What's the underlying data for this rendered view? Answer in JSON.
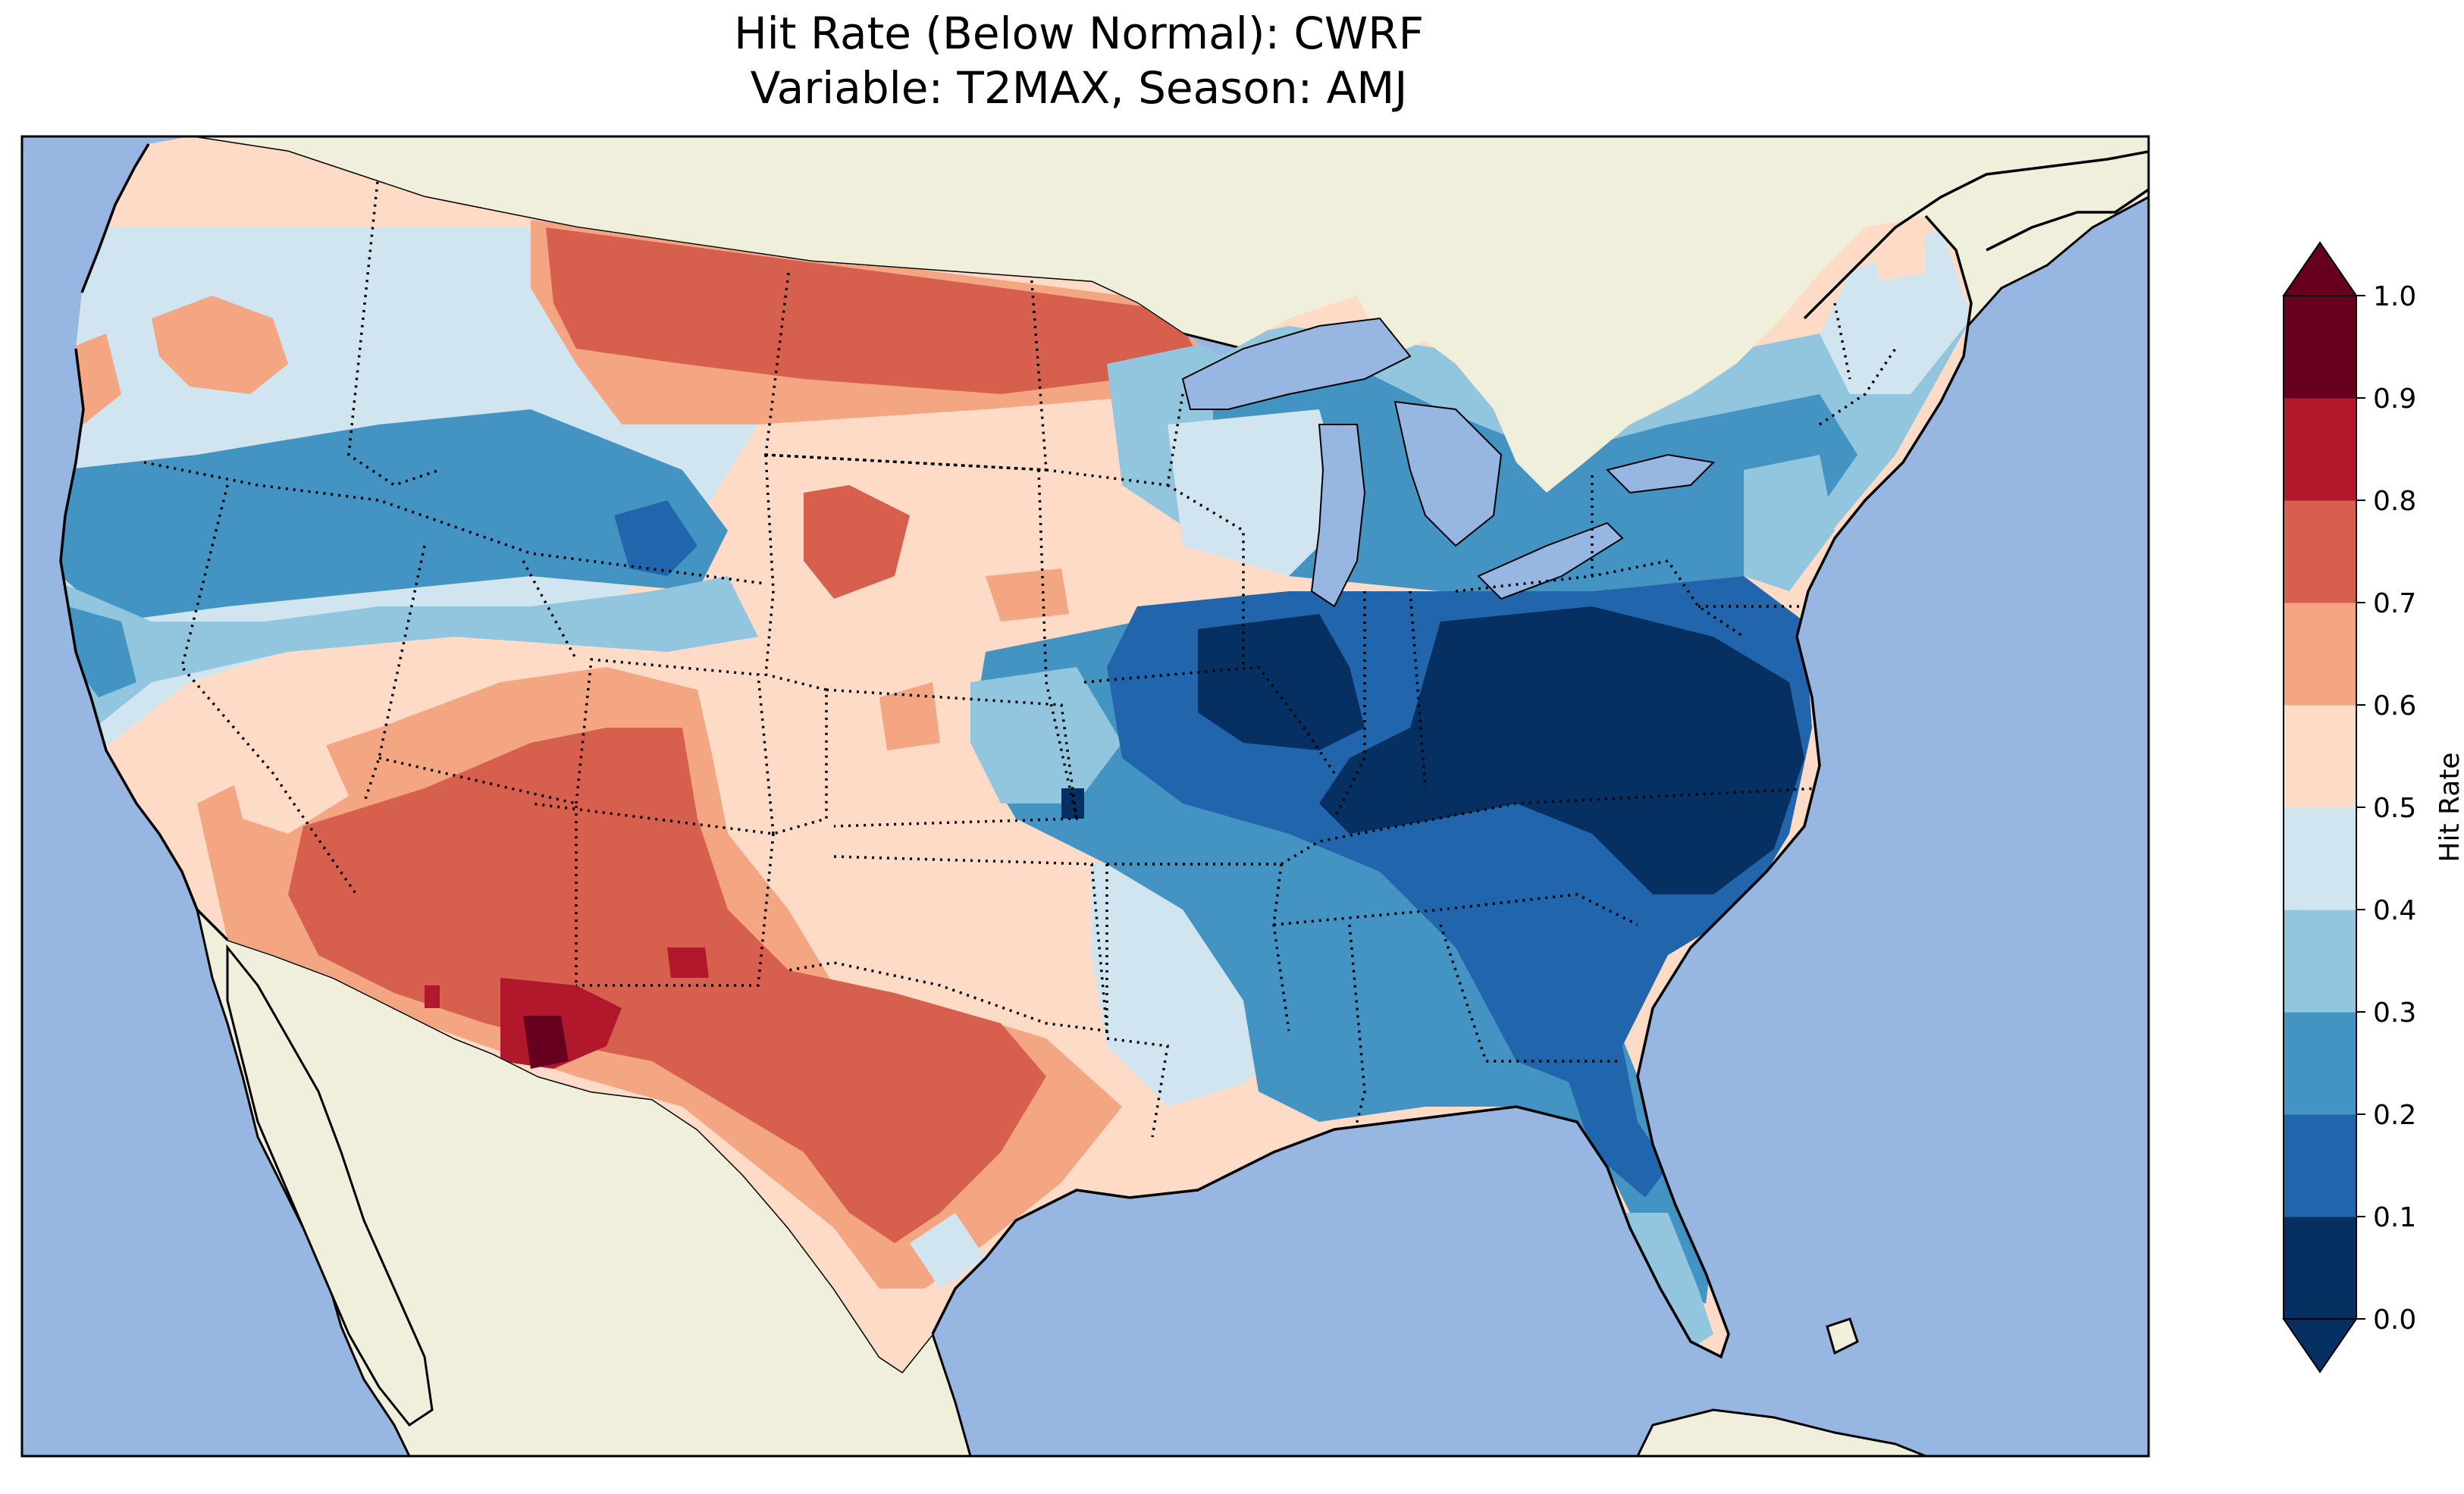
{
  "title": {
    "line1": "Hit Rate (Below Normal): CWRF",
    "line2": "Variable: T2MAX, Season: AMJ"
  },
  "map": {
    "region": "Contiguous United States",
    "ocean_color": "#97b6e1",
    "land_color": "#efefdb",
    "border_style": "dotted state boundaries, solid coastlines",
    "field_pattern": [
      {
        "region": "Upper Midwest / Northern Plains",
        "level": "0.7-0.8"
      },
      {
        "region": "Southwest / Texas",
        "level": "0.7-0.8"
      },
      {
        "region": "SE Arizona / SW New Mexico",
        "level": "0.9-1.0"
      },
      {
        "region": "Ohio Valley / Virginia / Carolinas",
        "level": "0.0-0.1"
      },
      {
        "region": "Southeast / Gulf Coast",
        "level": "0.1-0.3"
      },
      {
        "region": "Great Basin / Northern Rockies",
        "level": "0.2-0.3"
      },
      {
        "region": "Central Plains",
        "level": "0.5-0.6"
      }
    ]
  },
  "colorbar": {
    "label": "Hit Rate",
    "ticks": [
      "0.0",
      "0.1",
      "0.2",
      "0.3",
      "0.4",
      "0.5",
      "0.6",
      "0.7",
      "0.8",
      "0.9",
      "1.0"
    ],
    "colors": [
      "#053061",
      "#2166ac",
      "#4393c3",
      "#92c5de",
      "#d1e5f0",
      "#fddbc7",
      "#f4a582",
      "#d6604d",
      "#b2182b",
      "#67001f"
    ],
    "extend": "both"
  },
  "chart_data": {
    "type": "heatmap",
    "title": "Hit Rate (Below Normal): CWRF\nVariable: T2MAX, Season: AMJ",
    "colorbar_label": "Hit Rate",
    "vmin": 0.0,
    "vmax": 1.0,
    "levels": [
      0.0,
      0.1,
      0.2,
      0.3,
      0.4,
      0.5,
      0.6,
      0.7,
      0.8,
      0.9,
      1.0
    ],
    "cmap": "RdBu_r"
  }
}
